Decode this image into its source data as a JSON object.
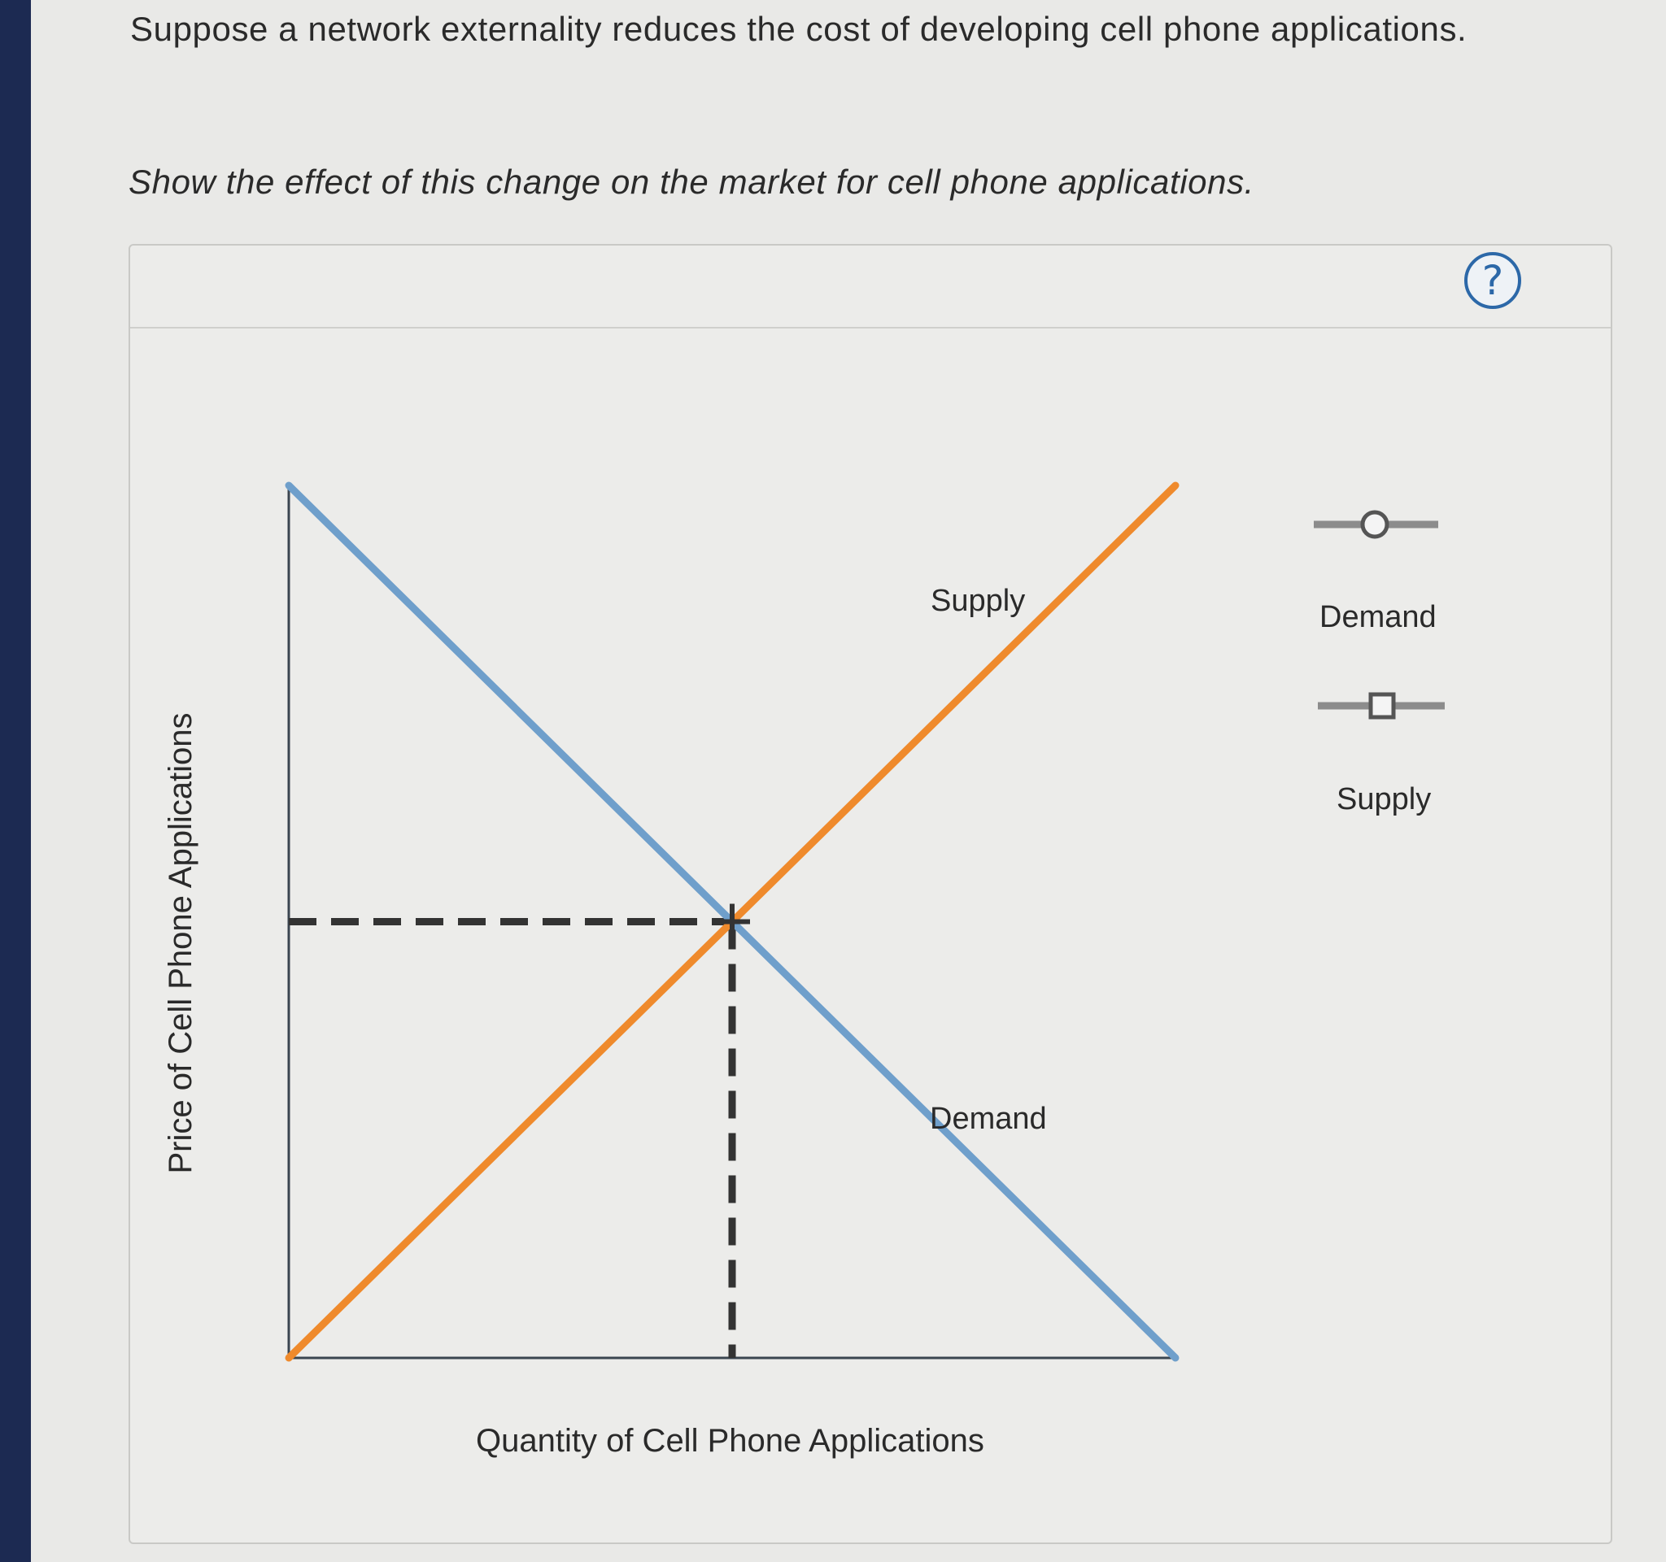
{
  "question": {
    "text": "Suppose a network externality reduces the cost of developing cell phone applications.",
    "instruction": "Show the effect of this change on the market for cell phone applications."
  },
  "panel": {
    "help_icon": "question-mark-icon",
    "help_glyph": "?"
  },
  "chart_data": {
    "type": "line",
    "title": "",
    "xlabel": "Quantity of Cell Phone Applications",
    "ylabel": "Price of Cell Phone Applications",
    "xlim": [
      0,
      10
    ],
    "ylim": [
      0,
      10
    ],
    "grid": false,
    "series": [
      {
        "name": "Demand",
        "color": "#6f9fcb",
        "points": [
          [
            0,
            10
          ],
          [
            10,
            0
          ]
        ]
      },
      {
        "name": "Supply",
        "color": "#ef8a2c",
        "points": [
          [
            0,
            0
          ],
          [
            10,
            10
          ]
        ]
      }
    ],
    "equilibrium": {
      "x": 5,
      "y": 5,
      "guide_color": "#333333"
    }
  },
  "palette": {
    "tools": [
      {
        "label": "Demand",
        "icon": "circle-point-line-icon"
      },
      {
        "label": "Supply",
        "icon": "square-point-line-icon"
      }
    ]
  }
}
